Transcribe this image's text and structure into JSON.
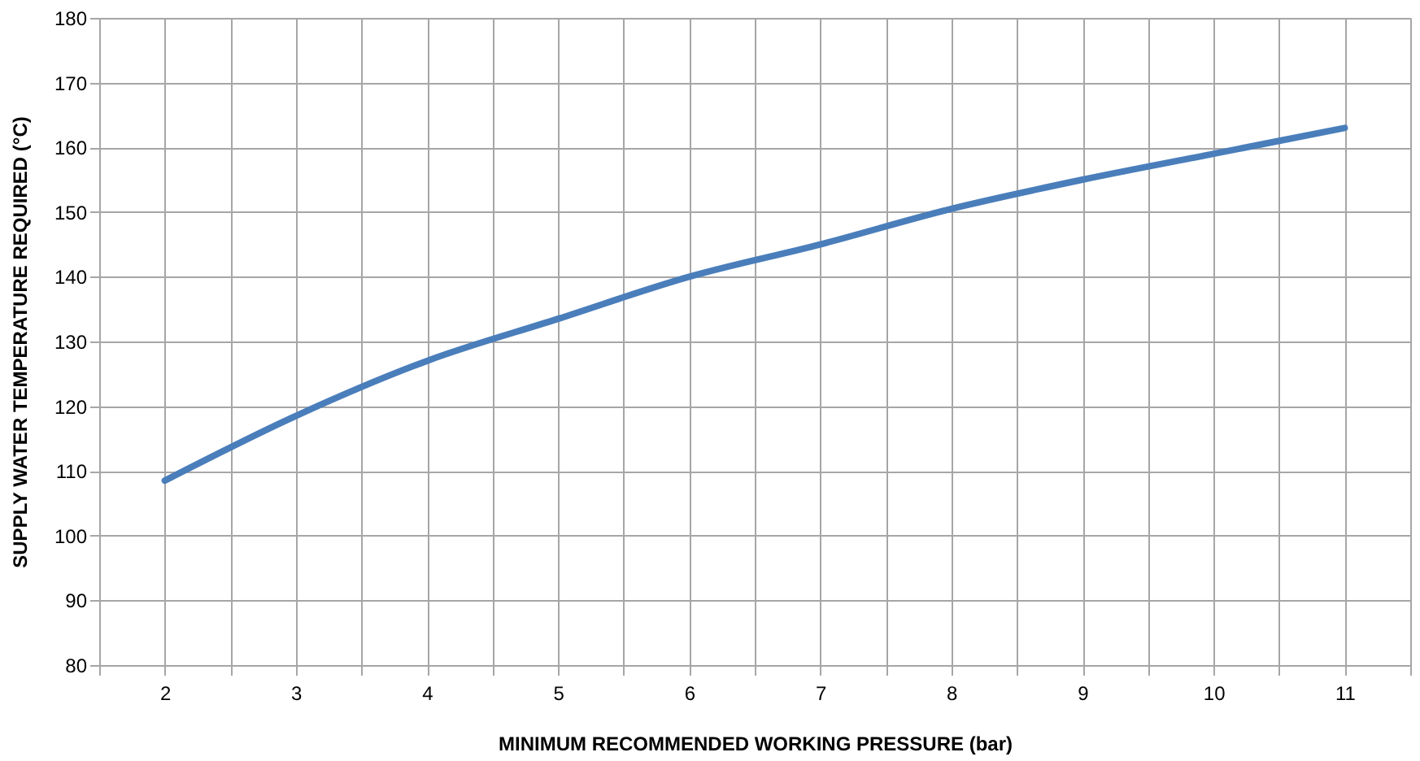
{
  "chart_data": {
    "type": "line",
    "xlabel": "MINIMUM RECOMMENDED WORKING PRESSURE (bar)",
    "ylabel": "SUPPLY WATER TEMPERATURE REQUIRED (°C)",
    "x": [
      2,
      3,
      4,
      5,
      6,
      7,
      8,
      9,
      10,
      11
    ],
    "series": [
      {
        "color": "#4a7ebb",
        "values": [
          108.5,
          118.5,
          127,
          133.5,
          140,
          145,
          150.5,
          155,
          159,
          163
        ]
      }
    ],
    "xlim": [
      1.5,
      11.5
    ],
    "xticks": [
      {
        "value": 1.5,
        "label": null
      },
      2,
      {
        "value": 2.5,
        "label": null
      },
      3,
      {
        "value": 3.5,
        "label": null
      },
      4,
      {
        "value": 4.5,
        "label": null
      },
      5,
      {
        "value": 5.5,
        "label": null
      },
      6,
      {
        "value": 6.5,
        "label": null
      },
      7,
      {
        "value": 7.5,
        "label": null
      },
      8,
      {
        "value": 8.5,
        "label": null
      },
      9,
      {
        "value": 9.5,
        "label": null
      },
      10,
      {
        "value": 10.5,
        "label": null
      },
      11,
      {
        "value": 11.5,
        "label": null
      }
    ],
    "ylim": [
      80,
      180
    ],
    "yticks": [
      80,
      90,
      100,
      110,
      120,
      130,
      140,
      150,
      160,
      170,
      180
    ],
    "grid": true,
    "marker": "none",
    "line_style": "solid"
  }
}
